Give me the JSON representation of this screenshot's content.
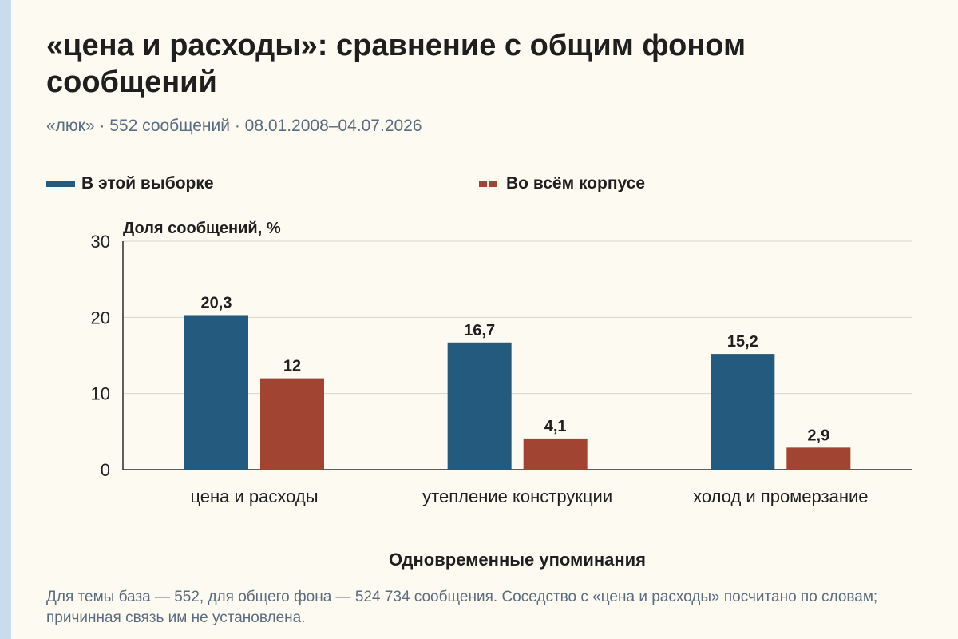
{
  "page": {
    "title": "«цена и расходы»: сравнение с общим фоном сообщений",
    "subtitle": "«люк» · 552 сообщений · 08.01.2008–04.07.2026",
    "footnote": "Для темы база — 552, для общего фона — 524 734 сообщения. Соседство с «цена и расходы» посчитано по словам; причинная связь им не установлена."
  },
  "colors": {
    "series_sample": "#245a7e",
    "series_corpus": "#a14431",
    "grid": "#d7d7d0",
    "axis": "#2a2a2a",
    "background": "#fdfbf1"
  },
  "chart_data": {
    "type": "bar",
    "title": "",
    "xlabel": "Одновременные упоминания",
    "ylabel": "Доля сообщений, %",
    "ylim": [
      0,
      30
    ],
    "yticks": [
      0,
      10,
      20,
      30
    ],
    "grid": true,
    "legend_position": "top",
    "categories": [
      "цена и расходы",
      "утепление конструкции",
      "холод и промерзание"
    ],
    "series": [
      {
        "name": "В этой выборке",
        "values": [
          20.3,
          16.7,
          15.2
        ],
        "labels": [
          "20,3",
          "16,7",
          "15,2"
        ],
        "color": "#245a7e"
      },
      {
        "name": "Во всём корпусе",
        "values": [
          12,
          4.1,
          2.9
        ],
        "labels": [
          "12",
          "4,1",
          "2,9"
        ],
        "color": "#a14431"
      }
    ]
  }
}
